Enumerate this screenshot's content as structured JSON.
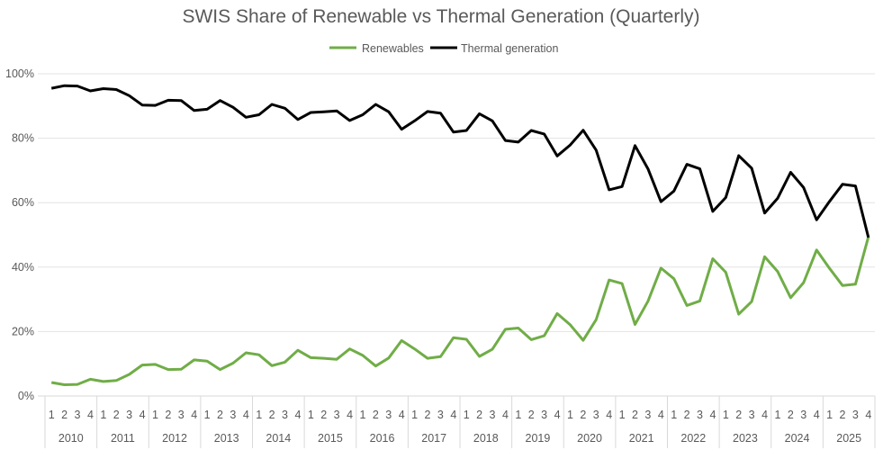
{
  "chart_data": {
    "type": "line",
    "title": "SWIS Share of Renewable vs Thermal Generation (Quarterly)",
    "xlabel": "",
    "ylabel": "",
    "ylim": [
      0,
      100
    ],
    "yticks": [
      "0%",
      "20%",
      "40%",
      "60%",
      "80%",
      "100%"
    ],
    "ytick_values": [
      0,
      20,
      40,
      60,
      80,
      100
    ],
    "grid": true,
    "legend_position": "top-center",
    "years": [
      "2010",
      "2011",
      "2012",
      "2013",
      "2014",
      "2015",
      "2016",
      "2017",
      "2018",
      "2019",
      "2020",
      "2021",
      "2022",
      "2023",
      "2024",
      "2025"
    ],
    "quarters": [
      "1",
      "2",
      "3",
      "4"
    ],
    "series": [
      {
        "name": "Renewables",
        "color": "#70AD47",
        "values": [
          4.2,
          3.5,
          3.6,
          5.2,
          4.5,
          4.8,
          6.7,
          9.6,
          9.8,
          8.2,
          8.3,
          11.2,
          10.8,
          8.2,
          10.2,
          13.4,
          12.8,
          9.4,
          10.5,
          14.2,
          11.9,
          11.7,
          11.4,
          14.6,
          12.6,
          9.3,
          11.8,
          17.2,
          14.6,
          11.7,
          12.2,
          18.1,
          17.6,
          12.3,
          14.5,
          20.7,
          21.1,
          17.5,
          18.7,
          25.6,
          22.1,
          17.3,
          23.7,
          36.0,
          34.9,
          22.2,
          29.4,
          39.7,
          36.4,
          28.1,
          29.5,
          42.6,
          38.4,
          25.4,
          29.3,
          43.2,
          38.6,
          30.5,
          35.2,
          45.3,
          39.6,
          34.3,
          34.7,
          49.4
        ]
      },
      {
        "name": "Thermal generation",
        "color": "#000000",
        "values": [
          95.5,
          96.3,
          96.2,
          94.7,
          95.4,
          95.1,
          93.2,
          90.3,
          90.2,
          91.8,
          91.7,
          88.6,
          89.0,
          91.7,
          89.6,
          86.5,
          87.3,
          90.5,
          89.3,
          85.8,
          88.0,
          88.2,
          88.5,
          85.5,
          87.3,
          90.5,
          88.2,
          82.8,
          85.4,
          88.3,
          87.8,
          81.9,
          82.4,
          87.6,
          85.4,
          79.3,
          78.8,
          82.4,
          81.3,
          74.5,
          77.9,
          82.5,
          76.3,
          64.0,
          65.0,
          77.7,
          70.5,
          60.3,
          63.6,
          71.9,
          70.5,
          57.3,
          61.6,
          74.6,
          70.7,
          56.8,
          61.4,
          69.4,
          64.7,
          54.7,
          60.4,
          65.7,
          65.2,
          49.2
        ]
      }
    ]
  }
}
